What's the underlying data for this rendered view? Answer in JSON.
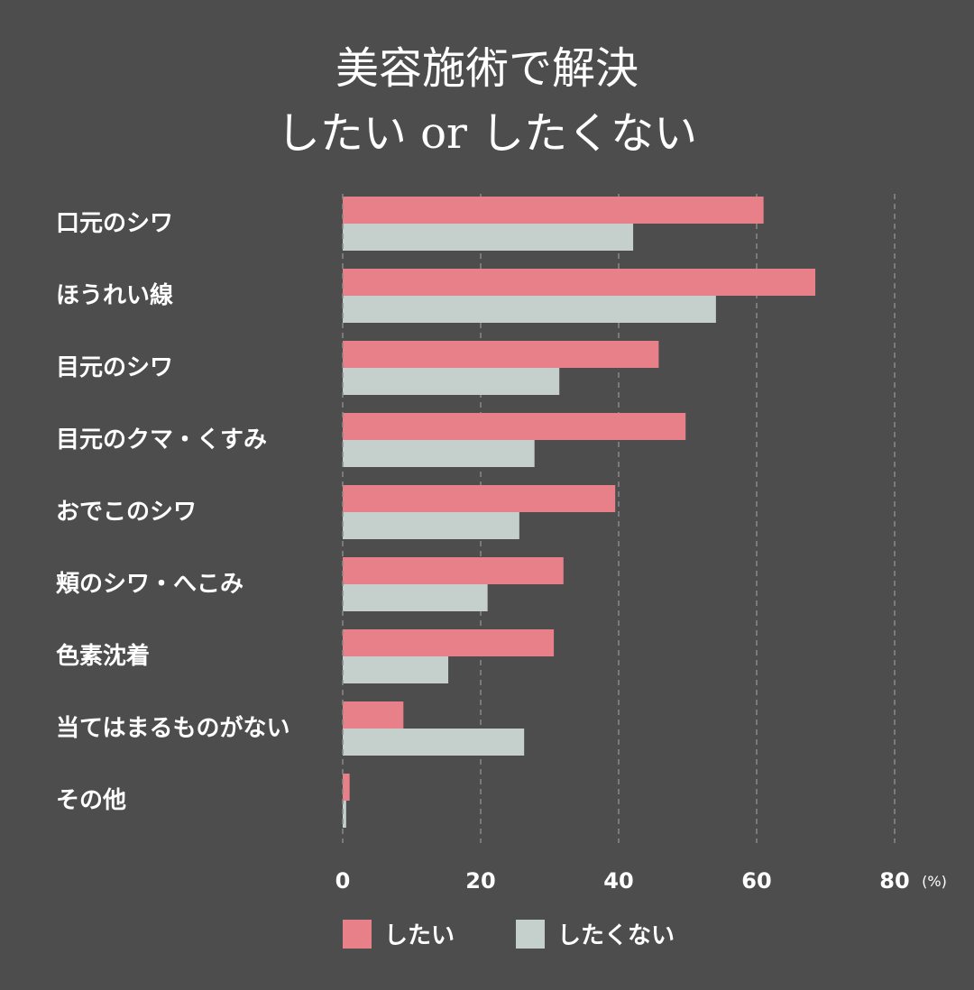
{
  "chart_data": {
    "type": "bar",
    "orientation": "horizontal",
    "title": [
      "美容施術で解決",
      "したい or したくない"
    ],
    "categories": [
      "口元のシワ",
      "ほうれい線",
      "目元のシワ",
      "目元のクマ・くすみ",
      "おでこのシワ",
      "頬のシワ・へこみ",
      "色素沈着",
      "当てはまるものがない",
      "その他"
    ],
    "series": [
      {
        "name": "したい",
        "color": "#e8808a",
        "values": [
          61.0,
          68.5,
          45.8,
          49.7,
          39.5,
          32.0,
          30.6,
          8.8,
          1.0
        ]
      },
      {
        "name": "したくない",
        "color": "#c5cfcc",
        "values": [
          42.1,
          54.1,
          31.4,
          27.8,
          25.6,
          21.0,
          15.3,
          26.3,
          0.5
        ]
      }
    ],
    "xticks": [
      "0",
      "20",
      "40",
      "60",
      "80"
    ],
    "xunit": "(%)",
    "xlim": [
      0,
      80
    ],
    "grid": "vertical dashed",
    "legend": "bottom",
    "background": "#4d4d4d"
  }
}
